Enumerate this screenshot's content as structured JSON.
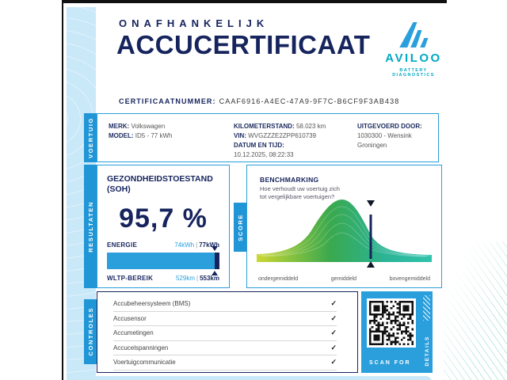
{
  "header": {
    "kicker": "ONAFHANKELIJK",
    "title": "ACCUCERTIFICAAT",
    "brand": {
      "name": "AVILOO",
      "tagline": "BATTERY DIAGNOSTICS"
    }
  },
  "certificate": {
    "label": "CERTIFICAATNUMMER:",
    "number": "CAAF6916-A4EC-47A9-9F7C-B6CF9F3AB438"
  },
  "sections": {
    "vehicle": "VOERTUIG",
    "results": "RESULTATEN",
    "score": "SCORE",
    "checks": "CONTROLES"
  },
  "vehicle": {
    "merk_label": "MERK:",
    "merk": "Volkswagen",
    "model_label": "MODEL:",
    "model": "ID5 - 77 kWh",
    "km_label": "KILOMETERSTAND:",
    "km": "58.023 km",
    "vin_label": "VIN:",
    "vin": "WVGZZZE2ZPP610739",
    "datum_label": "DATUM EN TIJD:",
    "datum": "10.12.2025, 08:22:33",
    "uitgevoerd_label": "UITGEVOERD DOOR:",
    "uitgevoerd": "1030300 - Wensink Groningen"
  },
  "results": {
    "soh_title_line1": "GEZONDHEIDSTOESTAND",
    "soh_title_line2": "(SOH)",
    "soh_value": "95,7 %",
    "energie_label": "ENERGIE",
    "energie_current": "74kWh",
    "sep": "|",
    "energie_total": "77kWh",
    "wltp_label": "WLTP-BEREIK",
    "wltp_current": "529km",
    "wltp_total": "553km",
    "bar_pct": 95.7
  },
  "benchmark": {
    "title": "BENCHMARKING",
    "question": "Hoe verhoudt uw voertuig zich tot vergelijkbare voertuigen?",
    "label_low": "ondergemiddeld",
    "label_mid": "gemiddeld",
    "label_high": "bovengemiddeld",
    "marker_pct": 65
  },
  "checks": {
    "items": [
      "Accubeheersysteem (BMS)",
      "Accusensor",
      "Accumetingen",
      "Accucelspanningen",
      "Voertuigcommunicatie"
    ],
    "check_glyph": "✓"
  },
  "qr": {
    "scan_label": "SCAN FOR",
    "details_label": "DETAILS"
  },
  "colors": {
    "navy": "#16245e",
    "accent_blue": "#2b9fdc",
    "tab_blue": "#2196d6",
    "band_blue": "#c9e8f8",
    "brand_teal": "#00a9c4",
    "curve_left": "#ccd832",
    "curve_mid": "#3aa94e",
    "curve_right": "#2fc3ad"
  }
}
